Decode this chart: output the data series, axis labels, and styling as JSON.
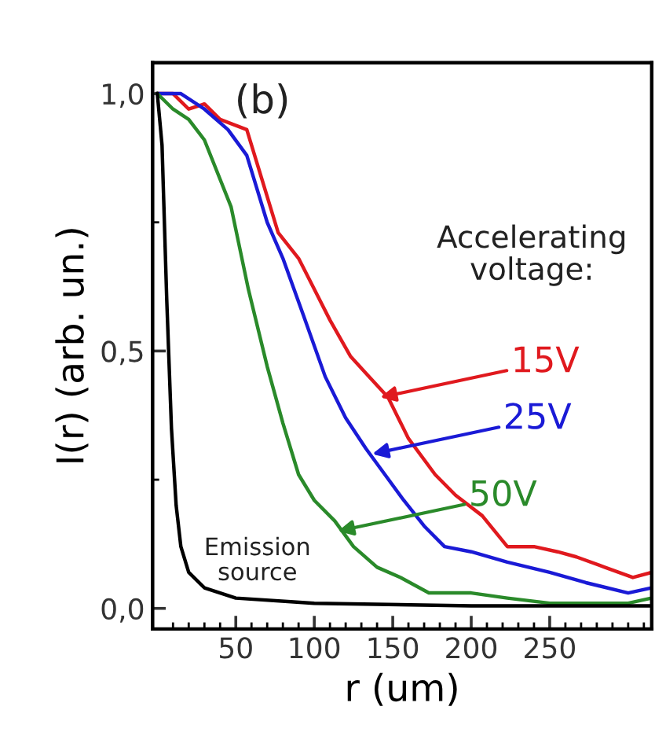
{
  "chart_data": {
    "type": "line",
    "xlabel": "r (um)",
    "ylabel": "I(r) (arb. un.)",
    "xlim": [
      -3,
      315
    ],
    "ylim": [
      -0.04,
      1.06
    ],
    "xticks": [
      {
        "value": 10,
        "label": null
      },
      {
        "value": 20,
        "label": null
      },
      {
        "value": 30,
        "label": null
      },
      {
        "value": 40,
        "label": null
      },
      50,
      {
        "value": 60,
        "label": null
      },
      {
        "value": 70,
        "label": null
      },
      {
        "value": 80,
        "label": null
      },
      {
        "value": 90,
        "label": null
      },
      100,
      {
        "value": 110,
        "label": null
      },
      {
        "value": 120,
        "label": null
      },
      {
        "value": 130,
        "label": null
      },
      {
        "value": 140,
        "label": null
      },
      150,
      {
        "value": 160,
        "label": null
      },
      {
        "value": 170,
        "label": null
      },
      {
        "value": 180,
        "label": null
      },
      {
        "value": 190,
        "label": null
      },
      200,
      {
        "value": 210,
        "label": null
      },
      {
        "value": 220,
        "label": null
      },
      {
        "value": 230,
        "label": null
      },
      {
        "value": 240,
        "label": null
      },
      250,
      {
        "value": 260,
        "label": null
      },
      {
        "value": 270,
        "label": null
      },
      {
        "value": 280,
        "label": null
      },
      {
        "value": 290,
        "label": null
      },
      {
        "value": 300,
        "label": null
      },
      {
        "value": 310,
        "label": null
      }
    ],
    "yticks": [
      {
        "value": 0,
        "label": "0,0"
      },
      {
        "value": 0.25,
        "label": null
      },
      {
        "value": 0.5,
        "label": "0,5"
      },
      {
        "value": 0.75,
        "label": null
      },
      {
        "value": 1,
        "label": "1,0"
      }
    ],
    "grid": false,
    "legend": false,
    "marker": "none",
    "line_style": "solid",
    "series": [
      {
        "color": "#e0191e",
        "x": [
          0,
          10,
          20,
          30,
          40,
          57,
          65,
          77,
          90,
          100,
          110,
          123,
          135,
          147,
          160,
          177,
          190,
          207,
          223,
          240,
          255,
          267,
          285,
          303,
          315
        ],
        "values": [
          1.0,
          1.0,
          0.97,
          0.98,
          0.95,
          0.93,
          0.85,
          0.73,
          0.68,
          0.62,
          0.56,
          0.49,
          0.45,
          0.41,
          0.33,
          0.26,
          0.22,
          0.18,
          0.12,
          0.12,
          0.11,
          0.1,
          0.08,
          0.06,
          0.07
        ]
      },
      {
        "color": "#1a1ad6",
        "x": [
          0,
          15,
          30,
          45,
          57,
          70,
          80,
          93,
          107,
          120,
          133,
          145,
          157,
          170,
          183,
          200,
          223,
          250,
          273,
          300,
          315
        ],
        "values": [
          1.0,
          1.0,
          0.97,
          0.93,
          0.88,
          0.75,
          0.68,
          0.57,
          0.45,
          0.37,
          0.31,
          0.26,
          0.21,
          0.16,
          0.12,
          0.11,
          0.09,
          0.07,
          0.05,
          0.03,
          0.04
        ]
      },
      {
        "color": "#2a8a2a",
        "x": [
          0,
          10,
          20,
          30,
          47,
          58,
          70,
          80,
          90,
          100,
          113,
          125,
          140,
          155,
          173,
          200,
          223,
          250,
          273,
          300,
          315
        ],
        "values": [
          1.0,
          0.97,
          0.95,
          0.91,
          0.78,
          0.62,
          0.47,
          0.36,
          0.26,
          0.21,
          0.17,
          0.12,
          0.08,
          0.06,
          0.03,
          0.03,
          0.02,
          0.01,
          0.01,
          0.01,
          0.02
        ]
      },
      {
        "color": "#000000",
        "x": [
          0,
          3,
          6,
          9,
          12,
          15,
          20,
          30,
          50,
          100,
          200,
          315
        ],
        "values": [
          1.0,
          0.9,
          0.6,
          0.35,
          0.2,
          0.12,
          0.07,
          0.04,
          0.02,
          0.01,
          0.005,
          0.005
        ]
      }
    ],
    "annotations": [
      "(b)",
      "Accelerating\nvoltage:",
      "Emission\nsource",
      {
        "text": "15V",
        "x": 142,
        "y": 0.41
      },
      {
        "text": "25V",
        "x": 137,
        "y": 0.3
      },
      {
        "text": "50V",
        "x": 115,
        "y": 0.15
      }
    ]
  }
}
